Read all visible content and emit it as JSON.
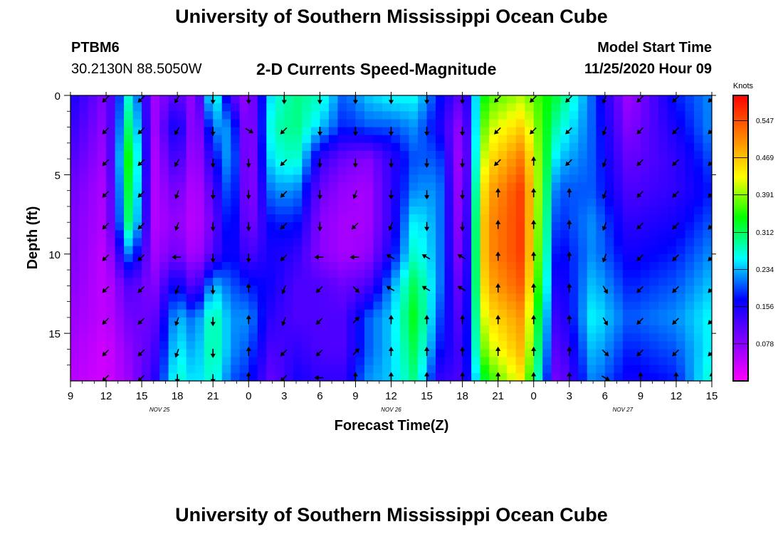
{
  "header": {
    "title": "University of Southern Mississippi Ocean Cube",
    "station_id": "PTBM6",
    "station_coords": "30.2130N 88.5050W",
    "plot_title": "2-D Currents Speed-Magnitude",
    "model_start_label": "Model Start Time",
    "model_start_value": "11/25/2020 Hour 09"
  },
  "footer": {
    "title": "University of Southern Mississippi Ocean Cube"
  },
  "chart_data": {
    "type": "heatmap",
    "title": "2-D Currents Speed-Magnitude",
    "xlabel": "Forecast Time(Z)",
    "ylabel": "Depth (ft)",
    "x_hours": [
      0,
      3,
      6,
      9,
      12,
      15,
      18,
      21,
      24,
      27,
      30,
      33,
      36,
      39,
      42,
      45,
      48,
      51,
      54
    ],
    "x_tick_labels": [
      "9",
      "12",
      "15",
      "18",
      "21",
      "0",
      "3",
      "6",
      "9",
      "12",
      "15",
      "18",
      "21",
      "0",
      "3",
      "6",
      "9",
      "12",
      "15"
    ],
    "day_labels": [
      {
        "text": "NOV 25",
        "hour": 7.5
      },
      {
        "text": "NOV 26",
        "hour": 27
      },
      {
        "text": "NOV 27",
        "hour": 46.5
      }
    ],
    "y_ticks": [
      0,
      5,
      10,
      15
    ],
    "ylim": [
      0,
      18
    ],
    "xlim": [
      0,
      54
    ],
    "colorbar": {
      "title": "Knots",
      "ticks": [
        0.547,
        0.469,
        0.391,
        0.312,
        0.234,
        0.156,
        0.078
      ],
      "range": [
        0,
        0.6
      ],
      "colors": [
        "#ff00ff",
        "#8000ff",
        "#0000ff",
        "#00ffff",
        "#00ff00",
        "#ffff00",
        "#ff8000",
        "#ff0000"
      ]
    },
    "depth_levels": [
      0,
      2,
      4,
      6,
      8,
      10,
      12,
      14,
      16,
      18
    ],
    "speed_by_hour": [
      {
        "hour": 0,
        "values": [
          0.16,
          0.14,
          0.12,
          0.1,
          0.09,
          0.09,
          0.08,
          0.07,
          0.06,
          0.05
        ]
      },
      {
        "hour": 3,
        "values": [
          0.08,
          0.07,
          0.06,
          0.05,
          0.05,
          0.04,
          0.04,
          0.04,
          0.03,
          0.03
        ]
      },
      {
        "hour": 5,
        "values": [
          0.28,
          0.32,
          0.36,
          0.34,
          0.32,
          0.22,
          0.12,
          0.1,
          0.08,
          0.07
        ]
      },
      {
        "hour": 7,
        "values": [
          0.06,
          0.06,
          0.05,
          0.05,
          0.05,
          0.06,
          0.08,
          0.1,
          0.12,
          0.14
        ]
      },
      {
        "hour": 9,
        "values": [
          0.12,
          0.18,
          0.14,
          0.1,
          0.08,
          0.1,
          0.18,
          0.24,
          0.26,
          0.28
        ]
      },
      {
        "hour": 10.5,
        "values": [
          0.06,
          0.05,
          0.05,
          0.04,
          0.04,
          0.05,
          0.1,
          0.2,
          0.22,
          0.24
        ]
      },
      {
        "hour": 12,
        "values": [
          0.3,
          0.22,
          0.16,
          0.12,
          0.1,
          0.12,
          0.24,
          0.3,
          0.3,
          0.28
        ]
      },
      {
        "hour": 13.5,
        "values": [
          0.12,
          0.22,
          0.24,
          0.22,
          0.2,
          0.18,
          0.2,
          0.22,
          0.22,
          0.2
        ]
      },
      {
        "hour": 15,
        "values": [
          0.06,
          0.05,
          0.05,
          0.06,
          0.08,
          0.12,
          0.18,
          0.22,
          0.2,
          0.18
        ]
      },
      {
        "hour": 17,
        "values": [
          0.26,
          0.28,
          0.26,
          0.22,
          0.18,
          0.16,
          0.16,
          0.14,
          0.12,
          0.1
        ]
      },
      {
        "hour": 19,
        "values": [
          0.3,
          0.3,
          0.28,
          0.22,
          0.18,
          0.14,
          0.12,
          0.12,
          0.14,
          0.16
        ]
      },
      {
        "hour": 21,
        "values": [
          0.28,
          0.24,
          0.14,
          0.1,
          0.08,
          0.08,
          0.12,
          0.12,
          0.12,
          0.14
        ]
      },
      {
        "hour": 23,
        "values": [
          0.2,
          0.18,
          0.1,
          0.07,
          0.06,
          0.06,
          0.1,
          0.12,
          0.12,
          0.14
        ]
      },
      {
        "hour": 25,
        "values": [
          0.24,
          0.2,
          0.08,
          0.06,
          0.06,
          0.07,
          0.12,
          0.2,
          0.2,
          0.22
        ]
      },
      {
        "hour": 27,
        "values": [
          0.26,
          0.2,
          0.14,
          0.14,
          0.14,
          0.16,
          0.22,
          0.24,
          0.24,
          0.24
        ]
      },
      {
        "hour": 29,
        "values": [
          0.26,
          0.22,
          0.2,
          0.22,
          0.26,
          0.28,
          0.32,
          0.34,
          0.32,
          0.3
        ]
      },
      {
        "hour": 31,
        "values": [
          0.18,
          0.16,
          0.2,
          0.22,
          0.22,
          0.22,
          0.22,
          0.2,
          0.18,
          0.14
        ]
      },
      {
        "hour": 33,
        "values": [
          0.1,
          0.06,
          0.04,
          0.04,
          0.05,
          0.06,
          0.08,
          0.1,
          0.12,
          0.12
        ]
      },
      {
        "hour": 35,
        "values": [
          0.36,
          0.4,
          0.44,
          0.48,
          0.5,
          0.5,
          0.48,
          0.44,
          0.4,
          0.34
        ]
      },
      {
        "hour": 38,
        "values": [
          0.4,
          0.46,
          0.52,
          0.56,
          0.56,
          0.56,
          0.54,
          0.5,
          0.48,
          0.44
        ]
      },
      {
        "hour": 41,
        "values": [
          0.32,
          0.28,
          0.24,
          0.2,
          0.18,
          0.16,
          0.14,
          0.12,
          0.1,
          0.08
        ]
      },
      {
        "hour": 44,
        "values": [
          0.2,
          0.2,
          0.2,
          0.2,
          0.22,
          0.22,
          0.24,
          0.26,
          0.24,
          0.22
        ]
      },
      {
        "hour": 47,
        "values": [
          0.06,
          0.08,
          0.1,
          0.12,
          0.14,
          0.16,
          0.18,
          0.2,
          0.18,
          0.16
        ]
      },
      {
        "hour": 51,
        "values": [
          0.18,
          0.16,
          0.14,
          0.14,
          0.16,
          0.18,
          0.2,
          0.22,
          0.2,
          0.18
        ]
      },
      {
        "hour": 54,
        "values": [
          0.22,
          0.22,
          0.2,
          0.18,
          0.2,
          0.22,
          0.24,
          0.26,
          0.26,
          0.28
        ]
      }
    ],
    "vector_hours": [
      3,
      6,
      9,
      12,
      15,
      18,
      21,
      24,
      27,
      30,
      33,
      36,
      39,
      42,
      45,
      48,
      51,
      54
    ],
    "vector_depths": [
      0.2,
      2.2,
      4.2,
      6.2,
      8.2,
      10.2,
      12.2,
      14.2,
      16.2,
      17.8
    ],
    "vector_direction_deg": [
      [
        225,
        225,
        225,
        225,
        225,
        225,
        225,
        225,
        225,
        225
      ],
      [
        225,
        225,
        225,
        225,
        225,
        225,
        225,
        225,
        225,
        225
      ],
      [
        210,
        210,
        210,
        200,
        200,
        270,
        200,
        200,
        200,
        180
      ],
      [
        180,
        180,
        180,
        180,
        180,
        180,
        180,
        180,
        180,
        180
      ],
      [
        180,
        120,
        180,
        180,
        180,
        180,
        0,
        0,
        0,
        0
      ],
      [
        180,
        225,
        225,
        225,
        225,
        225,
        200,
        200,
        225,
        225
      ],
      [
        180,
        180,
        180,
        180,
        180,
        270,
        225,
        225,
        225,
        270
      ],
      [
        180,
        180,
        180,
        200,
        225,
        270,
        135,
        45,
        45,
        0
      ],
      [
        180,
        180,
        180,
        180,
        200,
        300,
        300,
        0,
        0,
        0
      ],
      [
        180,
        180,
        180,
        180,
        180,
        300,
        300,
        0,
        0,
        0
      ],
      [
        180,
        180,
        180,
        180,
        180,
        300,
        300,
        0,
        0,
        0
      ],
      [
        225,
        225,
        225,
        0,
        0,
        0,
        0,
        0,
        0,
        0
      ],
      [
        225,
        225,
        0,
        0,
        0,
        0,
        0,
        0,
        0,
        0
      ],
      [
        225,
        225,
        225,
        0,
        0,
        0,
        0,
        0,
        0,
        0
      ],
      [
        200,
        200,
        200,
        200,
        200,
        200,
        150,
        150,
        135,
        120
      ],
      [
        225,
        225,
        225,
        225,
        225,
        225,
        225,
        225,
        225,
        0
      ],
      [
        225,
        225,
        225,
        225,
        225,
        225,
        225,
        225,
        225,
        0
      ],
      [
        225,
        225,
        225,
        225,
        225,
        225,
        225,
        225,
        225,
        0
      ]
    ],
    "grid": false,
    "legend": "right"
  }
}
